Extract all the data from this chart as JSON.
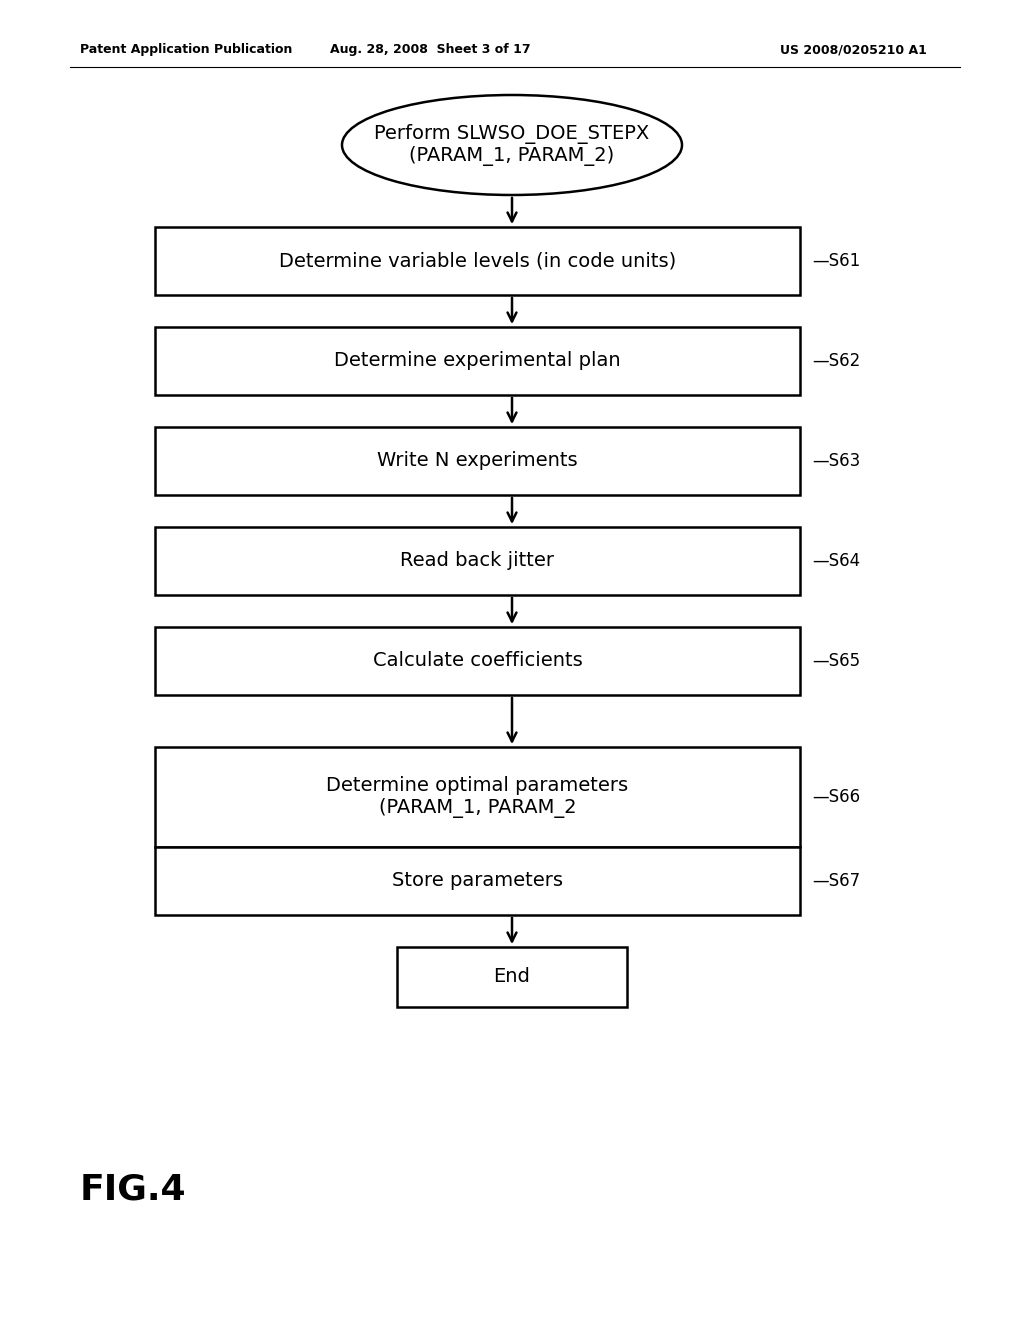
{
  "bg_color": "#ffffff",
  "header_left": "Patent Application Publication",
  "header_mid": "Aug. 28, 2008  Sheet 3 of 17",
  "header_right": "US 2008/0205210 A1",
  "ellipse_text": "Perform SLWSO_DOE_STEPX\n(PARAM_1, PARAM_2)",
  "boxes": [
    {
      "label": "Determine variable levels (in code units)",
      "tag": "S61"
    },
    {
      "label": "Determine experimental plan",
      "tag": "S62"
    },
    {
      "label": "Write N experiments",
      "tag": "S63"
    },
    {
      "label": "Read back jitter",
      "tag": "S64"
    },
    {
      "label": "Calculate coefficients",
      "tag": "S65"
    },
    {
      "label": "Determine optimal parameters\n(PARAM_1, PARAM_2",
      "tag": "S66"
    },
    {
      "label": "Store parameters",
      "tag": "S67"
    }
  ],
  "end_label": "End",
  "fig_label": "FIG.4",
  "line_color": "#000000",
  "text_color": "#000000",
  "font_size_box": 14,
  "font_size_tag": 12,
  "font_size_header": 9,
  "font_size_fig": 26,
  "font_size_ellipse": 14
}
